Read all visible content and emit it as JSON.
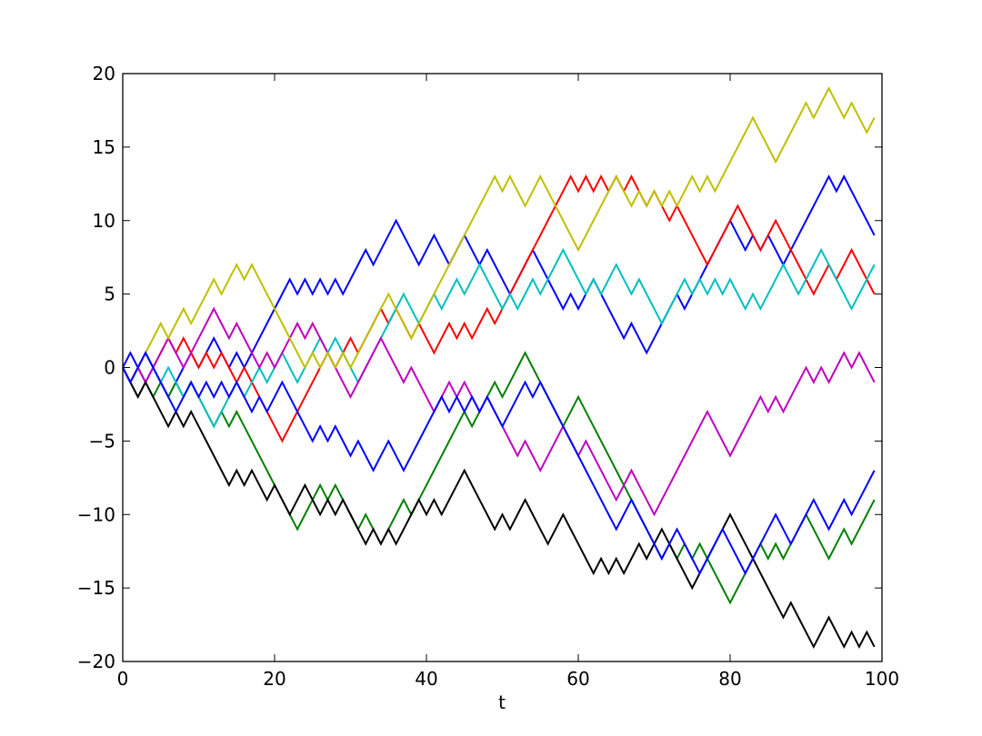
{
  "chart_data": {
    "type": "line",
    "x_label": "t",
    "x": [
      0,
      1,
      2,
      3,
      4,
      5,
      6,
      7,
      8,
      9,
      10,
      11,
      12,
      13,
      14,
      15,
      16,
      17,
      18,
      19,
      20,
      21,
      22,
      23,
      24,
      25,
      26,
      27,
      28,
      29,
      30,
      31,
      32,
      33,
      34,
      35,
      36,
      37,
      38,
      39,
      40,
      41,
      42,
      43,
      44,
      45,
      46,
      47,
      48,
      49,
      50,
      51,
      52,
      53,
      54,
      55,
      56,
      57,
      58,
      59,
      60,
      61,
      62,
      63,
      64,
      65,
      66,
      67,
      68,
      69,
      70,
      71,
      72,
      73,
      74,
      75,
      76,
      77,
      78,
      79,
      80,
      81,
      82,
      83,
      84,
      85,
      86,
      87,
      88,
      89,
      90,
      91,
      92,
      93,
      94,
      95,
      96,
      97,
      98,
      99
    ],
    "xlim": [
      0,
      100
    ],
    "xticks": [
      0,
      20,
      40,
      60,
      80,
      100
    ],
    "ylim": [
      -20,
      20
    ],
    "yticks": [
      {
        "value": -20,
        "label": "−20"
      },
      {
        "value": -15,
        "label": "−15"
      },
      {
        "value": -10,
        "label": "−10"
      },
      {
        "value": -5,
        "label": "−5"
      },
      0,
      5,
      10,
      15,
      20
    ],
    "series": [
      {
        "color": "#0000ff",
        "values": [
          0,
          1,
          0,
          -1,
          0,
          -1,
          -2,
          -1,
          0,
          1,
          0,
          1,
          2,
          1,
          0,
          1,
          0,
          1,
          2,
          3,
          4,
          5,
          6,
          5,
          6,
          5,
          6,
          5,
          6,
          5,
          6,
          7,
          8,
          7,
          8,
          9,
          10,
          9,
          8,
          7,
          8,
          9,
          8,
          7,
          8,
          9,
          8,
          7,
          8,
          7,
          6,
          5,
          6,
          7,
          8,
          7,
          6,
          5,
          4,
          5,
          4,
          5,
          6,
          5,
          4,
          3,
          2,
          3,
          2,
          1,
          2,
          3,
          4,
          5,
          4,
          5,
          6,
          7,
          8,
          9,
          10,
          9,
          8,
          9,
          8,
          9,
          8,
          7,
          8,
          9,
          10,
          11,
          12,
          13,
          12,
          13,
          12,
          11,
          10,
          9
        ]
      },
      {
        "color": "#008000",
        "values": [
          0,
          -1,
          -2,
          -1,
          -2,
          -1,
          -2,
          -1,
          -2,
          -1,
          -2,
          -3,
          -4,
          -3,
          -4,
          -3,
          -4,
          -5,
          -6,
          -7,
          -8,
          -9,
          -10,
          -11,
          -10,
          -9,
          -8,
          -9,
          -8,
          -9,
          -10,
          -11,
          -10,
          -11,
          -12,
          -11,
          -10,
          -9,
          -10,
          -9,
          -8,
          -7,
          -6,
          -5,
          -4,
          -3,
          -4,
          -3,
          -2,
          -1,
          -2,
          -1,
          0,
          1,
          0,
          -1,
          -2,
          -3,
          -4,
          -3,
          -2,
          -3,
          -4,
          -5,
          -6,
          -7,
          -8,
          -9,
          -10,
          -11,
          -12,
          -13,
          -12,
          -13,
          -12,
          -13,
          -12,
          -13,
          -14,
          -15,
          -16,
          -15,
          -14,
          -13,
          -12,
          -13,
          -12,
          -13,
          -12,
          -11,
          -10,
          -11,
          -12,
          -13,
          -12,
          -11,
          -12,
          -11,
          -10,
          -9
        ]
      },
      {
        "color": "#ff0000",
        "values": [
          0,
          -1,
          0,
          1,
          0,
          1,
          2,
          1,
          2,
          1,
          0,
          1,
          0,
          1,
          0,
          -1,
          0,
          -1,
          -2,
          -3,
          -4,
          -5,
          -4,
          -3,
          -2,
          -1,
          0,
          1,
          0,
          1,
          2,
          1,
          2,
          3,
          4,
          3,
          4,
          3,
          2,
          3,
          2,
          1,
          2,
          3,
          2,
          3,
          2,
          3,
          4,
          3,
          4,
          5,
          6,
          7,
          8,
          9,
          10,
          11,
          12,
          13,
          12,
          13,
          12,
          13,
          12,
          13,
          12,
          13,
          12,
          11,
          12,
          11,
          10,
          11,
          10,
          9,
          8,
          7,
          8,
          9,
          10,
          11,
          10,
          9,
          8,
          9,
          10,
          9,
          8,
          7,
          6,
          5,
          6,
          7,
          6,
          7,
          8,
          7,
          6,
          5
        ]
      },
      {
        "color": "#00bfbf",
        "values": [
          0,
          -1,
          0,
          1,
          0,
          -1,
          0,
          -1,
          -2,
          -1,
          -2,
          -3,
          -4,
          -3,
          -2,
          -1,
          -2,
          -1,
          0,
          -1,
          0,
          1,
          0,
          -1,
          0,
          1,
          2,
          1,
          2,
          1,
          0,
          -1,
          0,
          1,
          2,
          3,
          4,
          5,
          4,
          3,
          4,
          5,
          4,
          5,
          6,
          5,
          6,
          7,
          6,
          5,
          4,
          5,
          4,
          5,
          6,
          5,
          6,
          7,
          8,
          7,
          6,
          5,
          6,
          5,
          6,
          7,
          6,
          5,
          6,
          5,
          4,
          3,
          4,
          5,
          6,
          5,
          6,
          5,
          6,
          5,
          6,
          5,
          4,
          5,
          4,
          5,
          6,
          7,
          6,
          5,
          6,
          7,
          8,
          7,
          6,
          5,
          4,
          5,
          6,
          7
        ]
      },
      {
        "color": "#bf00bf",
        "values": [
          0,
          -1,
          0,
          -1,
          0,
          1,
          2,
          1,
          0,
          1,
          2,
          3,
          4,
          3,
          2,
          3,
          2,
          1,
          0,
          1,
          0,
          1,
          2,
          3,
          2,
          3,
          2,
          1,
          0,
          -1,
          -2,
          -1,
          0,
          1,
          2,
          1,
          0,
          -1,
          0,
          -1,
          -2,
          -3,
          -2,
          -1,
          -2,
          -1,
          -2,
          -3,
          -2,
          -3,
          -4,
          -5,
          -6,
          -5,
          -6,
          -7,
          -6,
          -5,
          -4,
          -5,
          -6,
          -5,
          -6,
          -7,
          -8,
          -9,
          -8,
          -7,
          -8,
          -9,
          -10,
          -9,
          -8,
          -7,
          -6,
          -5,
          -4,
          -3,
          -4,
          -5,
          -6,
          -5,
          -4,
          -3,
          -2,
          -3,
          -2,
          -3,
          -2,
          -1,
          0,
          -1,
          0,
          -1,
          0,
          1,
          0,
          1,
          0,
          -1
        ]
      },
      {
        "color": "#bfbf00",
        "values": [
          0,
          -1,
          0,
          1,
          2,
          3,
          2,
          3,
          4,
          3,
          4,
          5,
          6,
          5,
          6,
          7,
          6,
          7,
          6,
          5,
          4,
          3,
          2,
          1,
          0,
          1,
          0,
          1,
          0,
          1,
          0,
          1,
          2,
          3,
          4,
          5,
          4,
          3,
          2,
          3,
          4,
          5,
          6,
          7,
          8,
          9,
          10,
          11,
          12,
          13,
          12,
          13,
          12,
          11,
          12,
          13,
          12,
          11,
          10,
          9,
          8,
          9,
          10,
          11,
          12,
          13,
          12,
          11,
          12,
          11,
          12,
          11,
          12,
          11,
          12,
          13,
          12,
          13,
          12,
          13,
          14,
          15,
          16,
          17,
          16,
          15,
          14,
          15,
          16,
          17,
          18,
          17,
          18,
          19,
          18,
          17,
          18,
          17,
          16,
          17
        ]
      },
      {
        "color": "#000000",
        "values": [
          0,
          -1,
          -2,
          -1,
          -2,
          -3,
          -4,
          -3,
          -4,
          -3,
          -4,
          -5,
          -6,
          -7,
          -8,
          -7,
          -8,
          -7,
          -8,
          -9,
          -8,
          -9,
          -10,
          -9,
          -8,
          -9,
          -10,
          -9,
          -10,
          -9,
          -10,
          -11,
          -12,
          -11,
          -12,
          -11,
          -12,
          -11,
          -10,
          -9,
          -10,
          -9,
          -10,
          -9,
          -8,
          -7,
          -8,
          -9,
          -10,
          -11,
          -10,
          -11,
          -10,
          -9,
          -10,
          -11,
          -12,
          -11,
          -10,
          -11,
          -12,
          -13,
          -14,
          -13,
          -14,
          -13,
          -14,
          -13,
          -12,
          -13,
          -12,
          -11,
          -12,
          -13,
          -14,
          -15,
          -14,
          -13,
          -12,
          -11,
          -10,
          -11,
          -12,
          -13,
          -14,
          -15,
          -16,
          -17,
          -16,
          -17,
          -18,
          -19,
          -18,
          -17,
          -18,
          -19,
          -18,
          -19,
          -18,
          -19
        ]
      },
      {
        "color": "#0000ff",
        "values": [
          0,
          -1,
          0,
          1,
          0,
          -1,
          -2,
          -3,
          -2,
          -1,
          -2,
          -1,
          -2,
          -1,
          -2,
          -1,
          -2,
          -3,
          -2,
          -3,
          -2,
          -1,
          -2,
          -3,
          -4,
          -5,
          -4,
          -5,
          -4,
          -5,
          -6,
          -5,
          -6,
          -7,
          -6,
          -5,
          -6,
          -7,
          -6,
          -5,
          -4,
          -3,
          -2,
          -3,
          -2,
          -3,
          -2,
          -3,
          -2,
          -3,
          -4,
          -3,
          -2,
          -1,
          -2,
          -1,
          -2,
          -3,
          -4,
          -5,
          -6,
          -7,
          -8,
          -9,
          -10,
          -11,
          -10,
          -9,
          -10,
          -11,
          -12,
          -13,
          -12,
          -11,
          -12,
          -13,
          -14,
          -13,
          -12,
          -11,
          -12,
          -13,
          -14,
          -13,
          -12,
          -11,
          -10,
          -11,
          -12,
          -11,
          -10,
          -9,
          -10,
          -11,
          -10,
          -9,
          -10,
          -9,
          -8,
          -7
        ]
      }
    ]
  }
}
